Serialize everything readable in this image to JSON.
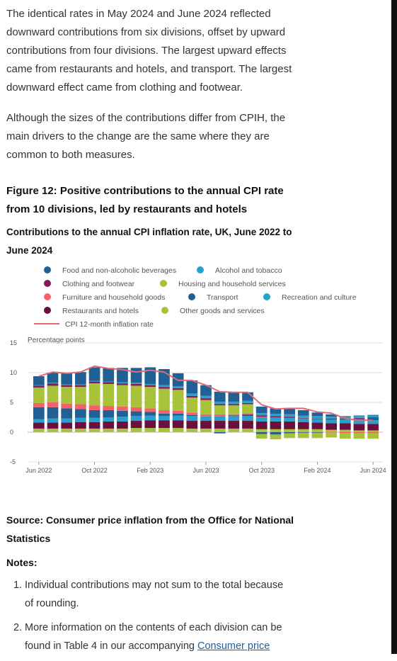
{
  "intro": {
    "para1_lines": [
      "The identical rates in May 2024 and June 2024 reflected",
      "downward contributions from six divisions, offset by upward",
      "contributions from four divisions. The largest upward effects",
      "came from restaurants and hotels, and transport. The largest",
      "downward effect came from clothing and footwear."
    ],
    "para2_lines": [
      "Although the sizes of the contributions differ from CPIH, the",
      "main drivers to the change are the same where they are",
      "common to both measures."
    ]
  },
  "figure": {
    "title_lines": [
      "Figure 12: Positive contributions to the annual CPI rate",
      "from 10 divisions, led by restaurants and hotels"
    ],
    "subtitle_lines": [
      "Contributions to the annual CPI inflation rate, UK, June 2022 to",
      "June 2024"
    ]
  },
  "chart_data": {
    "type": "bar",
    "stacked": true,
    "title": "Contributions to the annual CPI inflation rate, UK, June 2022 to June 2024",
    "ylabel": "Percentage points",
    "ylim": [
      -5,
      15
    ],
    "yticks": [
      -5,
      0,
      5,
      10,
      15
    ],
    "grid": true,
    "legend_position": "top",
    "x_tick_labels": [
      "Jun 2022",
      "Oct 2022",
      "Feb 2023",
      "Jun 2023",
      "Oct 2023",
      "Feb 2024",
      "Jun 2024"
    ],
    "x_tick_indices": [
      0,
      4,
      8,
      12,
      16,
      20,
      24
    ],
    "categories": [
      "Jun 2022",
      "Jul 2022",
      "Aug 2022",
      "Sep 2022",
      "Oct 2022",
      "Nov 2022",
      "Dec 2022",
      "Jan 2023",
      "Feb 2023",
      "Mar 2023",
      "Apr 2023",
      "May 2023",
      "Jun 2023",
      "Jul 2023",
      "Aug 2023",
      "Sep 2023",
      "Oct 2023",
      "Nov 2023",
      "Dec 2023",
      "Jan 2024",
      "Feb 2024",
      "Mar 2024",
      "Apr 2024",
      "May 2024",
      "Jun 2024"
    ],
    "series": [
      {
        "name": "Other goods and services",
        "color": "#a8c23a",
        "values": [
          0.6,
          0.6,
          0.6,
          0.6,
          0.6,
          0.6,
          0.6,
          0.7,
          0.7,
          0.7,
          0.7,
          0.6,
          0.6,
          0.6,
          0.6,
          0.6,
          0.5,
          0.5,
          0.5,
          0.5,
          0.5,
          0.4,
          0.4,
          0.3,
          0.3
        ]
      },
      {
        "name": "Restaurants and hotels",
        "color": "#6b0f3f",
        "values": [
          1.0,
          1.0,
          1.0,
          1.1,
          1.1,
          1.2,
          1.2,
          1.2,
          1.3,
          1.3,
          1.3,
          1.3,
          1.3,
          1.3,
          1.3,
          1.3,
          1.3,
          1.3,
          1.3,
          1.2,
          1.1,
          1.1,
          1.1,
          1.1,
          1.1
        ]
      },
      {
        "name": "Recreation and culture",
        "color": "#27a0cc",
        "values": [
          0.6,
          0.7,
          0.7,
          0.7,
          0.7,
          0.7,
          0.8,
          0.8,
          0.8,
          0.7,
          0.8,
          0.8,
          0.8,
          0.8,
          0.8,
          0.8,
          0.7,
          0.7,
          0.6,
          0.6,
          0.6,
          0.6,
          0.6,
          0.6,
          0.6
        ]
      },
      {
        "name": "Transport",
        "color": "#206095",
        "values": [
          2.0,
          1.9,
          1.7,
          1.5,
          1.3,
          1.2,
          1.0,
          0.8,
          0.6,
          0.4,
          0.3,
          0.2,
          0.0,
          -0.2,
          0.1,
          0.3,
          -0.3,
          -0.4,
          -0.2,
          -0.1,
          -0.1,
          0.1,
          0.1,
          0.3,
          0.4
        ]
      },
      {
        "name": "Furniture and household goods",
        "color": "#f66068",
        "values": [
          0.7,
          0.8,
          0.8,
          0.8,
          0.8,
          0.7,
          0.7,
          0.7,
          0.6,
          0.6,
          0.5,
          0.4,
          0.3,
          0.3,
          0.2,
          0.2,
          0.1,
          0.0,
          0.0,
          -0.1,
          -0.1,
          -0.1,
          -0.2,
          -0.2,
          -0.2
        ]
      },
      {
        "name": "Housing and household services",
        "color": "#a8c23a",
        "values": [
          2.6,
          2.8,
          2.8,
          2.9,
          3.7,
          3.7,
          3.6,
          3.6,
          3.6,
          3.6,
          3.5,
          2.5,
          2.4,
          1.5,
          1.5,
          1.5,
          -0.8,
          -0.8,
          -0.8,
          -0.8,
          -0.8,
          -0.8,
          -0.9,
          -0.9,
          -0.9
        ]
      },
      {
        "name": "Clothing and footwear",
        "color": "#871a5b",
        "values": [
          0.3,
          0.4,
          0.3,
          0.3,
          0.3,
          0.3,
          0.3,
          0.3,
          0.3,
          0.3,
          0.3,
          0.3,
          0.3,
          0.2,
          0.2,
          0.2,
          0.2,
          0.2,
          0.2,
          0.1,
          0.1,
          0.1,
          0.1,
          0.1,
          0.1
        ]
      },
      {
        "name": "Alcohol and tobacco",
        "color": "#27a0cc",
        "values": [
          0.1,
          0.1,
          0.1,
          0.1,
          0.1,
          0.1,
          0.2,
          0.2,
          0.2,
          0.3,
          0.3,
          0.4,
          0.4,
          0.4,
          0.4,
          0.4,
          0.4,
          0.4,
          0.4,
          0.4,
          0.4,
          0.3,
          0.3,
          0.3,
          0.3
        ]
      },
      {
        "name": "Food and non-alcoholic beverages",
        "color": "#206095",
        "values": [
          1.5,
          1.7,
          2.0,
          2.1,
          2.3,
          2.3,
          2.4,
          2.5,
          2.8,
          2.7,
          2.2,
          2.2,
          1.8,
          1.7,
          1.6,
          1.4,
          1.1,
          0.9,
          1.0,
          0.9,
          0.6,
          0.4,
          0.1,
          0.1,
          0.1
        ]
      }
    ],
    "line": {
      "name": "CPI 12-month inflation rate",
      "color": "#e06b76",
      "values": [
        9.4,
        10.1,
        9.9,
        10.1,
        11.1,
        10.7,
        10.5,
        10.1,
        10.4,
        10.1,
        8.7,
        8.7,
        7.9,
        6.8,
        6.7,
        6.7,
        4.6,
        3.9,
        4.0,
        4.0,
        3.4,
        3.2,
        2.3,
        2.0,
        2.0
      ]
    }
  },
  "legend": {
    "items": [
      {
        "label": "Food and non-alcoholic beverages",
        "color": "#206095",
        "kind": "dot"
      },
      {
        "label": "Alcohol and tobacco",
        "color": "#27a0cc",
        "kind": "dot"
      },
      {
        "label": "Clothing and footwear",
        "color": "#871a5b",
        "kind": "dot"
      },
      {
        "label": "Housing and household services",
        "color": "#a8c23a",
        "kind": "dot"
      },
      {
        "label": "Furniture and household goods",
        "color": "#f66068",
        "kind": "dot"
      },
      {
        "label": "Transport",
        "color": "#206095",
        "kind": "dot"
      },
      {
        "label": "Recreation and culture",
        "color": "#27a0cc",
        "kind": "dot"
      },
      {
        "label": "Restaurants and hotels",
        "color": "#6b0f3f",
        "kind": "dot"
      },
      {
        "label": "Other goods and services",
        "color": "#a8c23a",
        "kind": "dot"
      },
      {
        "label": "CPI 12-month inflation rate",
        "color": "#e06b76",
        "kind": "line"
      }
    ]
  },
  "source": {
    "lines": [
      "Source: Consumer price inflation from the Office for National",
      "Statistics"
    ]
  },
  "notes": {
    "title": "Notes:",
    "items": [
      {
        "num": "1.",
        "lines": [
          "Individual contributions may not sum to the total because",
          "of rounding."
        ]
      },
      {
        "num": "2.",
        "lines": [
          "More information on the contents of each division can be",
          "found in Table 4 in our accompanying "
        ],
        "link": "Consumer price"
      }
    ]
  }
}
